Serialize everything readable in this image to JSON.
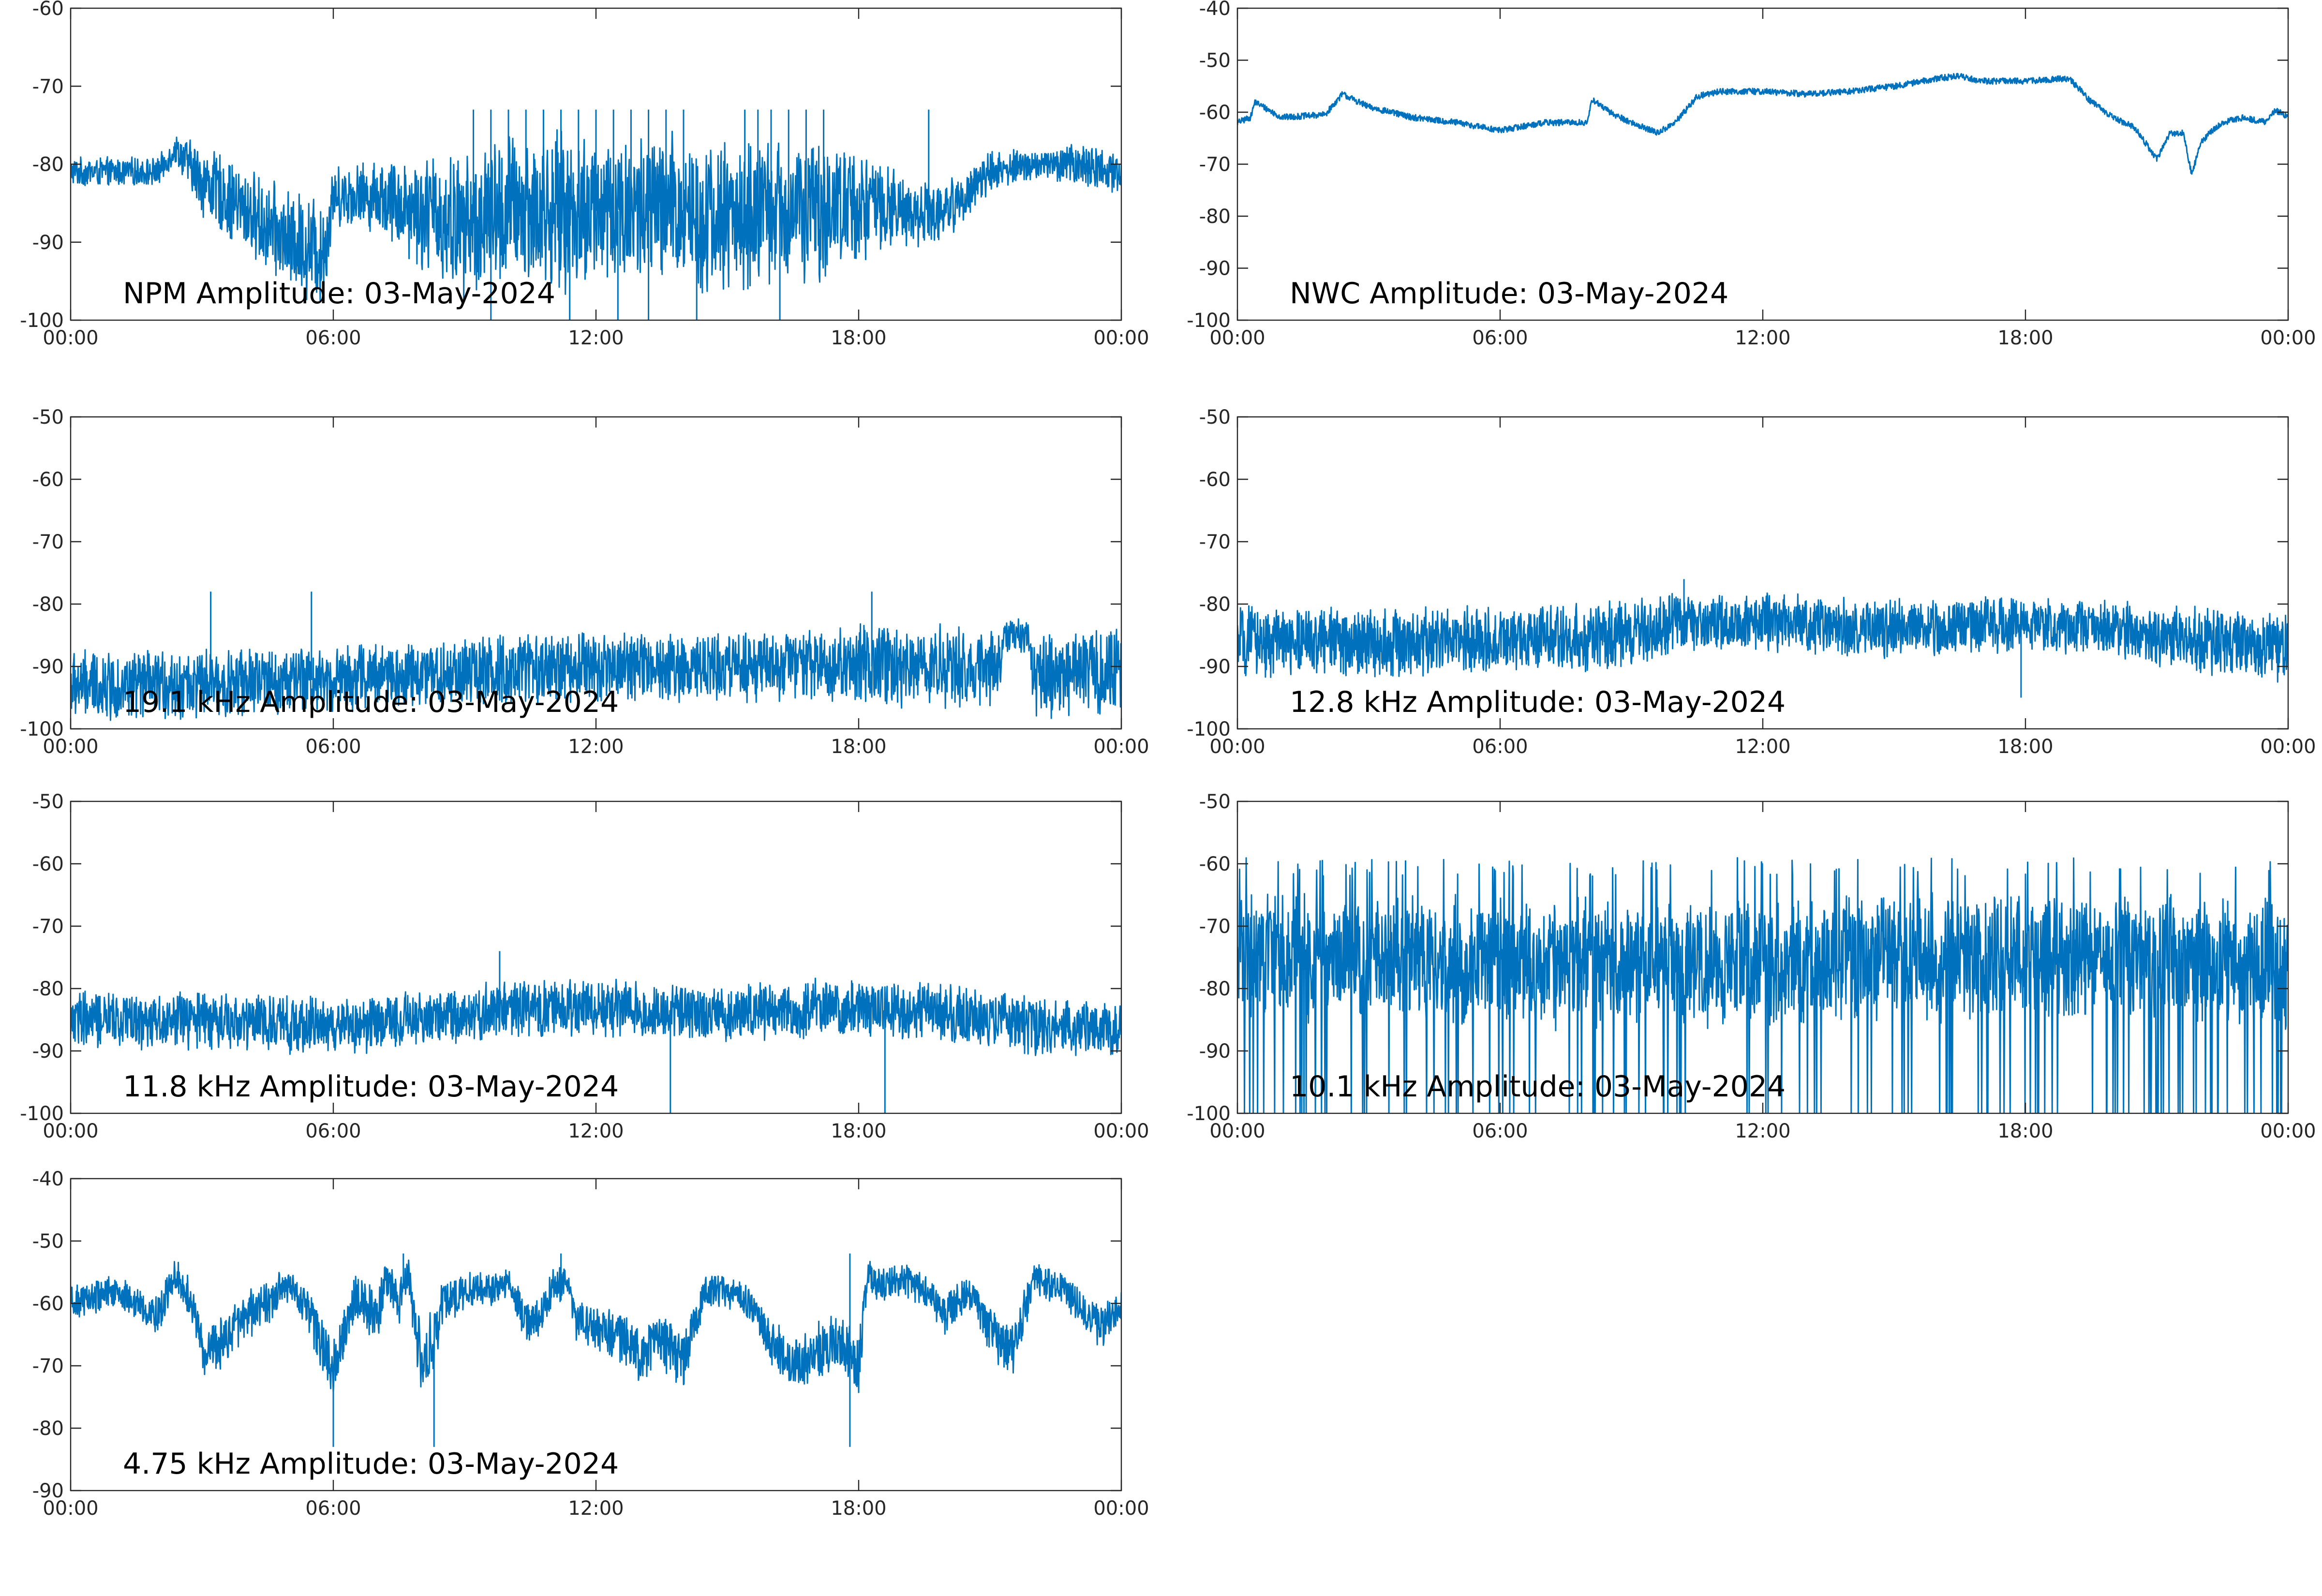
{
  "figure": {
    "background": "#ffffff",
    "trace_color": "#0072BD"
  },
  "chart_data": [
    {
      "type": "line",
      "label": "NPM Amplitude: 03-May-2024",
      "x_ticks": [
        "00:00",
        "06:00",
        "12:00",
        "18:00",
        "00:00"
      ],
      "x_range_hours": [
        0,
        24
      ],
      "y_ticks": [
        "-60",
        "-70",
        "-80",
        "-90",
        "-100"
      ],
      "ylim": [
        -100,
        -60
      ],
      "grid": false,
      "x": [
        0,
        1,
        2,
        2.4,
        3,
        4,
        5,
        5.8,
        6,
        7,
        8,
        9,
        10,
        11,
        12,
        13,
        14,
        15,
        16,
        17,
        18,
        19,
        20,
        21,
        22,
        23,
        24
      ],
      "series": [
        {
          "mean": [
            -81,
            -81,
            -81,
            -78,
            -82,
            -86,
            -90,
            -91,
            -84,
            -84,
            -86,
            -88,
            -86,
            -86,
            -86,
            -86,
            -86,
            -87,
            -86,
            -86,
            -85,
            -86,
            -86,
            -81,
            -80,
            -80,
            -81
          ],
          "spread": [
            2,
            2,
            2,
            2,
            5,
            6,
            7,
            8,
            4,
            5,
            8,
            10,
            11,
            11,
            11,
            11,
            11,
            11,
            10,
            10,
            8,
            5,
            4,
            3,
            2,
            3,
            3
          ]
        }
      ],
      "spikes_up": [
        9.2,
        9.6,
        10.0,
        10.4,
        10.8,
        11.2,
        11.6,
        12.0,
        12.4,
        12.8,
        13.2,
        13.6,
        14.0,
        15.4,
        15.7,
        16.0,
        16.4,
        16.8,
        17.2,
        19.6
      ],
      "spike_up_peak": -73,
      "spikes_down": [
        9.6,
        11.4,
        12.5,
        13.2,
        14.3,
        16.2
      ],
      "spike_down_min": -100
    },
    {
      "type": "line",
      "label": "NWC Amplitude: 03-May-2024",
      "x_ticks": [
        "00:00",
        "06:00",
        "12:00",
        "18:00",
        "00:00"
      ],
      "x_range_hours": [
        0,
        24
      ],
      "y_ticks": [
        "-40",
        "-50",
        "-60",
        "-70",
        "-80",
        "-90",
        "-100"
      ],
      "ylim": [
        -100,
        -40
      ],
      "grid": false,
      "x": [
        0,
        0.3,
        0.4,
        1,
        2,
        2.4,
        3,
        3.5,
        4,
        5,
        6,
        7,
        8,
        8.1,
        8.5,
        9,
        9.6,
        10,
        10.5,
        11,
        12,
        13,
        14,
        15,
        16,
        16.5,
        17,
        18,
        19,
        19.5,
        20,
        20.5,
        21,
        21.3,
        21.6,
        21.8,
        22,
        22.2,
        22.5,
        23,
        23.5,
        23.7,
        24
      ],
      "series": [
        {
          "mean": [
            -62,
            -61,
            -58,
            -61,
            -60.5,
            -56.5,
            -59,
            -60,
            -61,
            -62,
            -63.5,
            -62,
            -62,
            -57.5,
            -60,
            -62,
            -64,
            -62,
            -57,
            -56,
            -56,
            -56.5,
            -56,
            -55,
            -53.5,
            -53,
            -54,
            -54,
            -53.5,
            -58,
            -61,
            -63,
            -69,
            -64,
            -64,
            -72,
            -66,
            -64,
            -62,
            -61,
            -62,
            -59.5,
            -61
          ],
          "spread": [
            0.6,
            0.6,
            0.6,
            0.6,
            0.6,
            0.6,
            0.6,
            0.6,
            0.6,
            0.6,
            0.6,
            0.6,
            0.6,
            0.6,
            0.6,
            0.6,
            0.6,
            0.6,
            0.6,
            0.6,
            0.6,
            0.6,
            0.6,
            0.6,
            0.6,
            0.6,
            0.6,
            0.6,
            0.6,
            0.6,
            0.6,
            0.6,
            0.6,
            0.6,
            0.6,
            0.6,
            0.6,
            0.6,
            0.6,
            0.6,
            0.6,
            0.6,
            0.6
          ]
        }
      ]
    },
    {
      "type": "line",
      "label": "19.1 kHz Amplitude: 03-May-2024",
      "x_ticks": [
        "00:00",
        "06:00",
        "12:00",
        "18:00",
        "00:00"
      ],
      "x_range_hours": [
        0,
        24
      ],
      "y_ticks": [
        "-50",
        "-60",
        "-70",
        "-80",
        "-90",
        "-100"
      ],
      "ylim": [
        -100,
        -50
      ],
      "grid": false,
      "x": [
        0,
        3,
        6,
        9,
        12,
        15,
        18,
        21.2,
        21.3,
        21.9,
        22,
        24
      ],
      "series": [
        {
          "mean": [
            -93,
            -93,
            -92,
            -91,
            -90,
            -90,
            -90,
            -90,
            -85,
            -85,
            -92,
            -90
          ],
          "spread": [
            6,
            6,
            6,
            6,
            6,
            6,
            7,
            7,
            3,
            3,
            7,
            8
          ]
        }
      ],
      "spikes_up": [
        3.2,
        5.5,
        18.3
      ],
      "spike_up_peak": -78,
      "spikes_down": [],
      "spike_down_min": -100
    },
    {
      "type": "line",
      "label": "12.8 kHz Amplitude: 03-May-2024",
      "x_ticks": [
        "00:00",
        "06:00",
        "12:00",
        "18:00",
        "00:00"
      ],
      "x_range_hours": [
        0,
        24
      ],
      "y_ticks": [
        "-50",
        "-60",
        "-70",
        "-80",
        "-90",
        "-100"
      ],
      "ylim": [
        -100,
        -50
      ],
      "grid": false,
      "x": [
        0,
        3,
        6,
        9,
        10,
        12,
        15,
        18,
        20,
        22,
        24
      ],
      "series": [
        {
          "mean": [
            -86,
            -86,
            -86,
            -85,
            -83,
            -83,
            -84,
            -83,
            -84,
            -86,
            -87
          ],
          "spread": [
            6,
            6,
            6,
            6,
            5,
            5,
            5,
            5,
            5,
            6,
            6
          ]
        }
      ],
      "spikes_up": [
        10.2
      ],
      "spike_up_peak": -76,
      "spikes_down": [
        17.9
      ],
      "spike_down_min": -95
    },
    {
      "type": "line",
      "label": "11.8 kHz Amplitude: 03-May-2024",
      "x_ticks": [
        "00:00",
        "06:00",
        "12:00",
        "18:00",
        "00:00"
      ],
      "x_range_hours": [
        0,
        24
      ],
      "y_ticks": [
        "-50",
        "-60",
        "-70",
        "-80",
        "-90",
        "-100"
      ],
      "ylim": [
        -100,
        -50
      ],
      "grid": false,
      "x": [
        0,
        3,
        6,
        8,
        10,
        12,
        15,
        18,
        20,
        22,
        24
      ],
      "series": [
        {
          "mean": [
            -85,
            -85,
            -86,
            -85,
            -83,
            -83,
            -84,
            -83,
            -84,
            -86,
            -87
          ],
          "spread": [
            5,
            5,
            5,
            5,
            5,
            5,
            5,
            5,
            5,
            5,
            5
          ]
        }
      ],
      "spikes_up": [
        9.8
      ],
      "spike_up_peak": -74,
      "spikes_down": [
        13.7,
        18.6
      ],
      "spike_down_min": -100
    },
    {
      "type": "line",
      "label": "10.1 kHz Amplitude: 03-May-2024",
      "x_ticks": [
        "00:00",
        "06:00",
        "12:00",
        "18:00",
        "00:00"
      ],
      "x_range_hours": [
        0,
        24
      ],
      "y_ticks": [
        "-50",
        "-60",
        "-70",
        "-80",
        "-90",
        "-100"
      ],
      "ylim": [
        -100,
        -50
      ],
      "grid": false,
      "x": [
        0,
        3,
        6,
        9,
        12,
        15,
        18,
        21,
        24
      ],
      "series": [
        {
          "mean": [
            -75,
            -75,
            -76,
            -76,
            -76,
            -75,
            -75,
            -75,
            -76
          ],
          "spread": [
            11,
            11,
            11,
            11,
            11,
            11,
            11,
            11,
            11
          ]
        }
      ],
      "dropouts": 140,
      "dropout_min": -100,
      "spike_up_peak": -62
    },
    {
      "type": "line",
      "label": "4.75 kHz Amplitude: 03-May-2024",
      "x_ticks": [
        "00:00",
        "06:00",
        "12:00",
        "18:00",
        "00:00"
      ],
      "x_range_hours": [
        0,
        24
      ],
      "y_ticks": [
        "-40",
        "-50",
        "-60",
        "-70",
        "-80",
        "-90"
      ],
      "ylim": [
        -90,
        -40
      ],
      "grid": false,
      "x": [
        0,
        1,
        2,
        2.4,
        2.8,
        3,
        3.5,
        4,
        4.5,
        5,
        5.5,
        5.8,
        6,
        6.5,
        7,
        7.2,
        7.5,
        7.7,
        8,
        8.3,
        8.5,
        9,
        10,
        10.5,
        11,
        11.3,
        11.5,
        12,
        12.5,
        13,
        13.5,
        14,
        14.2,
        14.5,
        15,
        15.5,
        16,
        16.5,
        17,
        17.5,
        18,
        18.2,
        18.5,
        19,
        19.5,
        20,
        20.5,
        21,
        21.5,
        22,
        22.5,
        23,
        23.5,
        24
      ],
      "series": [
        {
          "mean": [
            -60,
            -58,
            -62,
            -55,
            -60,
            -68,
            -66,
            -62,
            -60,
            -57,
            -62,
            -68,
            -70,
            -58,
            -63,
            -56,
            -60,
            -55,
            -70,
            -66,
            -60,
            -58,
            -57,
            -64,
            -58,
            -56,
            -62,
            -64,
            -65,
            -68,
            -66,
            -70,
            -64,
            -58,
            -58,
            -60,
            -66,
            -70,
            -68,
            -66,
            -70,
            -56,
            -57,
            -56,
            -58,
            -62,
            -58,
            -64,
            -68,
            -56,
            -57,
            -60,
            -64,
            -60
          ],
          "spread": [
            3,
            3,
            3,
            3,
            4,
            5,
            5,
            4,
            4,
            3,
            4,
            6,
            6,
            4,
            5,
            3,
            4,
            3,
            7,
            6,
            4,
            3,
            3,
            4,
            4,
            3,
            4,
            4,
            5,
            5,
            5,
            5,
            4,
            3,
            3,
            3,
            4,
            5,
            5,
            5,
            5,
            3,
            3,
            3,
            3,
            4,
            3,
            4,
            5,
            3,
            3,
            3,
            4,
            3
          ]
        }
      ],
      "spikes_up": [
        7.6,
        11.2,
        17.8
      ],
      "spike_up_peak": -52,
      "spikes_down": [
        6.0,
        8.3,
        17.8
      ],
      "spike_down_min": -83
    }
  ]
}
